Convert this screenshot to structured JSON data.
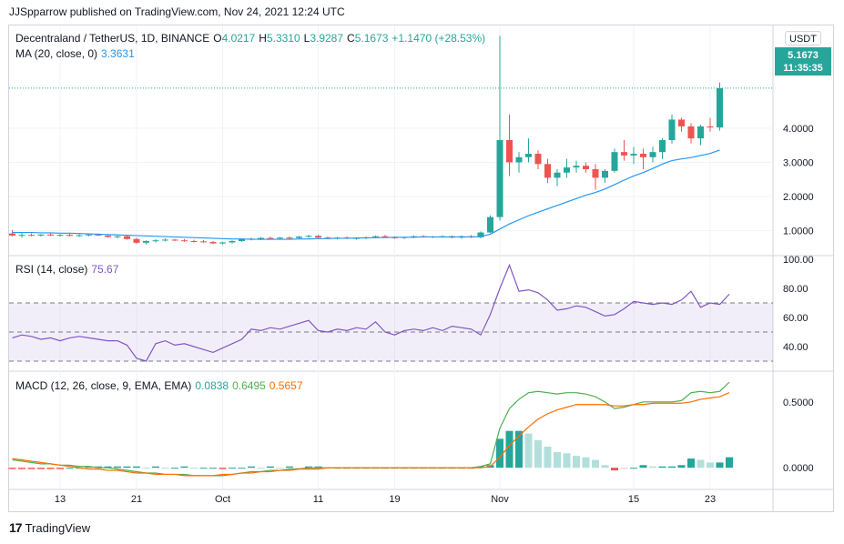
{
  "header": {
    "published": "JJSpparrow published on TradingView.com, Nov 24, 2021 12:24 UTC"
  },
  "branding": {
    "logo_text": "TradingView",
    "logo_icon": "tradingview-logo-icon"
  },
  "currency_button": "USDT",
  "last_price": {
    "price": "5.1673",
    "countdown": "11:35:35"
  },
  "colors": {
    "up": "#26a69a",
    "down": "#ef5350",
    "ma": "#2196f3",
    "rsi": "#7e57c2",
    "macd": "#4caf50",
    "signal": "#ff6d00",
    "hist_up_strong": "#26a69a",
    "hist_up_weak": "#b2dfdb",
    "hist_down_strong": "#ef5350",
    "hist_down_weak": "#ffcdd2"
  },
  "legend": {
    "symbol": "Decentraland / TetherUS, 1D, BINANCE",
    "o_label": "O",
    "o": "4.0217",
    "h_label": "H",
    "h": "5.3310",
    "l_label": "L",
    "l": "3.9287",
    "c_label": "C",
    "c": "5.1673",
    "change": "+1.1470 (+28.53%)",
    "ma_label": "MA (20, close, 0)",
    "ma": "3.3631",
    "rsi_label": "RSI (14, close)",
    "rsi": "75.67",
    "macd_label": "MACD (12, 26, close, 9, EMA, EMA)",
    "macd": "0.0838",
    "macd_line": "0.6495",
    "macd_signal": "0.5657"
  },
  "chart_data": {
    "type": "candlestick",
    "symbol": "Decentraland / TetherUS",
    "interval": "1D",
    "exchange": "BINANCE",
    "x_tick_labels": [
      "13",
      "21",
      "Oct",
      "11",
      "19",
      "Nov",
      "15",
      "23"
    ],
    "x_tick_index": [
      5,
      13,
      22,
      32,
      40,
      51,
      65,
      73
    ],
    "price_axis": {
      "ticks": [
        1.0,
        2.0,
        3.0,
        4.0
      ],
      "tick_labels": [
        "1.0000",
        "2.0000",
        "3.0000",
        "4.0000"
      ]
    },
    "candles": [
      {
        "o": 0.92,
        "h": 1.02,
        "l": 0.84,
        "c": 0.86
      },
      {
        "o": 0.86,
        "h": 0.93,
        "l": 0.8,
        "c": 0.88
      },
      {
        "o": 0.88,
        "h": 0.92,
        "l": 0.84,
        "c": 0.86
      },
      {
        "o": 0.86,
        "h": 0.9,
        "l": 0.83,
        "c": 0.89
      },
      {
        "o": 0.89,
        "h": 0.92,
        "l": 0.85,
        "c": 0.86
      },
      {
        "o": 0.86,
        "h": 0.9,
        "l": 0.83,
        "c": 0.88
      },
      {
        "o": 0.88,
        "h": 0.91,
        "l": 0.84,
        "c": 0.85
      },
      {
        "o": 0.85,
        "h": 0.9,
        "l": 0.82,
        "c": 0.87
      },
      {
        "o": 0.87,
        "h": 0.91,
        "l": 0.84,
        "c": 0.89
      },
      {
        "o": 0.89,
        "h": 0.92,
        "l": 0.85,
        "c": 0.86
      },
      {
        "o": 0.86,
        "h": 0.89,
        "l": 0.8,
        "c": 0.82
      },
      {
        "o": 0.82,
        "h": 0.86,
        "l": 0.78,
        "c": 0.84
      },
      {
        "o": 0.84,
        "h": 0.88,
        "l": 0.74,
        "c": 0.76
      },
      {
        "o": 0.76,
        "h": 0.8,
        "l": 0.62,
        "c": 0.65
      },
      {
        "o": 0.65,
        "h": 0.72,
        "l": 0.6,
        "c": 0.7
      },
      {
        "o": 0.7,
        "h": 0.76,
        "l": 0.66,
        "c": 0.72
      },
      {
        "o": 0.72,
        "h": 0.78,
        "l": 0.69,
        "c": 0.74
      },
      {
        "o": 0.74,
        "h": 0.77,
        "l": 0.7,
        "c": 0.72
      },
      {
        "o": 0.72,
        "h": 0.76,
        "l": 0.68,
        "c": 0.7
      },
      {
        "o": 0.7,
        "h": 0.74,
        "l": 0.66,
        "c": 0.69
      },
      {
        "o": 0.69,
        "h": 0.73,
        "l": 0.65,
        "c": 0.67
      },
      {
        "o": 0.67,
        "h": 0.7,
        "l": 0.61,
        "c": 0.63
      },
      {
        "o": 0.63,
        "h": 0.68,
        "l": 0.6,
        "c": 0.66
      },
      {
        "o": 0.66,
        "h": 0.72,
        "l": 0.63,
        "c": 0.7
      },
      {
        "o": 0.7,
        "h": 0.78,
        "l": 0.68,
        "c": 0.76
      },
      {
        "o": 0.76,
        "h": 0.8,
        "l": 0.72,
        "c": 0.77
      },
      {
        "o": 0.77,
        "h": 0.82,
        "l": 0.73,
        "c": 0.79
      },
      {
        "o": 0.79,
        "h": 0.83,
        "l": 0.75,
        "c": 0.78
      },
      {
        "o": 0.78,
        "h": 0.82,
        "l": 0.74,
        "c": 0.8
      },
      {
        "o": 0.8,
        "h": 0.84,
        "l": 0.76,
        "c": 0.79
      },
      {
        "o": 0.79,
        "h": 0.85,
        "l": 0.76,
        "c": 0.83
      },
      {
        "o": 0.83,
        "h": 0.88,
        "l": 0.79,
        "c": 0.85
      },
      {
        "o": 0.85,
        "h": 0.88,
        "l": 0.78,
        "c": 0.8
      },
      {
        "o": 0.8,
        "h": 0.84,
        "l": 0.76,
        "c": 0.78
      },
      {
        "o": 0.78,
        "h": 0.82,
        "l": 0.75,
        "c": 0.8
      },
      {
        "o": 0.8,
        "h": 0.84,
        "l": 0.76,
        "c": 0.77
      },
      {
        "o": 0.77,
        "h": 0.81,
        "l": 0.74,
        "c": 0.79
      },
      {
        "o": 0.79,
        "h": 0.83,
        "l": 0.76,
        "c": 0.81
      },
      {
        "o": 0.81,
        "h": 0.86,
        "l": 0.78,
        "c": 0.84
      },
      {
        "o": 0.84,
        "h": 0.88,
        "l": 0.8,
        "c": 0.81
      },
      {
        "o": 0.81,
        "h": 0.84,
        "l": 0.77,
        "c": 0.79
      },
      {
        "o": 0.79,
        "h": 0.83,
        "l": 0.76,
        "c": 0.82
      },
      {
        "o": 0.82,
        "h": 0.86,
        "l": 0.79,
        "c": 0.84
      },
      {
        "o": 0.84,
        "h": 0.87,
        "l": 0.8,
        "c": 0.82
      },
      {
        "o": 0.82,
        "h": 0.85,
        "l": 0.79,
        "c": 0.83
      },
      {
        "o": 0.83,
        "h": 0.86,
        "l": 0.8,
        "c": 0.84
      },
      {
        "o": 0.84,
        "h": 0.86,
        "l": 0.78,
        "c": 0.8
      },
      {
        "o": 0.8,
        "h": 0.86,
        "l": 0.77,
        "c": 0.84
      },
      {
        "o": 0.84,
        "h": 0.87,
        "l": 0.79,
        "c": 0.81
      },
      {
        "o": 0.81,
        "h": 0.98,
        "l": 0.78,
        "c": 0.95
      },
      {
        "o": 0.95,
        "h": 1.45,
        "l": 0.93,
        "c": 1.4
      },
      {
        "o": 1.4,
        "h": 6.7,
        "l": 1.3,
        "c": 3.65
      },
      {
        "o": 3.65,
        "h": 4.4,
        "l": 2.6,
        "c": 3.0
      },
      {
        "o": 3.0,
        "h": 3.3,
        "l": 2.7,
        "c": 3.15
      },
      {
        "o": 3.15,
        "h": 3.7,
        "l": 3.0,
        "c": 3.25
      },
      {
        "o": 3.25,
        "h": 3.35,
        "l": 2.8,
        "c": 2.95
      },
      {
        "o": 2.95,
        "h": 3.1,
        "l": 2.4,
        "c": 2.55
      },
      {
        "o": 2.55,
        "h": 2.8,
        "l": 2.3,
        "c": 2.7
      },
      {
        "o": 2.7,
        "h": 3.1,
        "l": 2.55,
        "c": 2.85
      },
      {
        "o": 2.85,
        "h": 3.05,
        "l": 2.7,
        "c": 2.9
      },
      {
        "o": 2.9,
        "h": 3.0,
        "l": 2.7,
        "c": 2.8
      },
      {
        "o": 2.8,
        "h": 2.95,
        "l": 2.2,
        "c": 2.55
      },
      {
        "o": 2.55,
        "h": 2.8,
        "l": 2.4,
        "c": 2.75
      },
      {
        "o": 2.75,
        "h": 3.4,
        "l": 2.7,
        "c": 3.3
      },
      {
        "o": 3.3,
        "h": 3.65,
        "l": 3.05,
        "c": 3.2
      },
      {
        "o": 3.2,
        "h": 3.45,
        "l": 2.95,
        "c": 3.25
      },
      {
        "o": 3.25,
        "h": 3.4,
        "l": 2.8,
        "c": 3.15
      },
      {
        "o": 3.15,
        "h": 3.45,
        "l": 3.0,
        "c": 3.3
      },
      {
        "o": 3.3,
        "h": 3.7,
        "l": 3.1,
        "c": 3.65
      },
      {
        "o": 3.65,
        "h": 4.4,
        "l": 3.55,
        "c": 4.25
      },
      {
        "o": 4.25,
        "h": 4.3,
        "l": 3.9,
        "c": 4.05
      },
      {
        "o": 4.05,
        "h": 4.15,
        "l": 3.55,
        "c": 3.7
      },
      {
        "o": 3.7,
        "h": 4.1,
        "l": 3.5,
        "c": 4.05
      },
      {
        "o": 4.05,
        "h": 4.3,
        "l": 3.9,
        "c": 4.02
      },
      {
        "o": 4.02,
        "h": 5.33,
        "l": 3.93,
        "c": 5.17
      }
    ],
    "ma20": [
      0.95,
      0.95,
      0.95,
      0.94,
      0.94,
      0.93,
      0.93,
      0.92,
      0.91,
      0.9,
      0.89,
      0.88,
      0.87,
      0.86,
      0.85,
      0.84,
      0.83,
      0.82,
      0.81,
      0.8,
      0.79,
      0.78,
      0.77,
      0.76,
      0.76,
      0.75,
      0.75,
      0.75,
      0.75,
      0.75,
      0.76,
      0.76,
      0.77,
      0.77,
      0.78,
      0.78,
      0.79,
      0.79,
      0.8,
      0.8,
      0.81,
      0.81,
      0.81,
      0.82,
      0.82,
      0.82,
      0.82,
      0.82,
      0.82,
      0.83,
      0.9,
      1.05,
      1.2,
      1.32,
      1.44,
      1.54,
      1.64,
      1.74,
      1.84,
      1.94,
      2.04,
      2.12,
      2.22,
      2.35,
      2.48,
      2.6,
      2.7,
      2.82,
      2.95,
      3.05,
      3.1,
      3.14,
      3.2,
      3.26,
      3.36
    ],
    "rsi": {
      "ylim": [
        25,
        100
      ],
      "upper_band": 70,
      "middle_band": 50,
      "lower_band": 30,
      "ticks": [
        40,
        60,
        80,
        100
      ],
      "tick_labels": [
        "40.00",
        "60.00",
        "80.00",
        "100.00"
      ],
      "values": [
        46,
        48,
        47,
        45,
        46,
        44,
        46,
        47,
        46,
        45,
        44,
        44,
        41,
        32,
        30,
        42,
        44,
        41,
        42,
        40,
        38,
        36,
        39,
        42,
        45,
        52,
        51,
        53,
        52,
        54,
        56,
        58,
        51,
        50,
        52,
        51,
        53,
        52,
        57,
        50,
        48,
        51,
        52,
        51,
        53,
        51,
        54,
        53,
        52,
        48,
        62,
        80,
        96,
        78,
        79,
        77,
        72,
        65,
        66,
        68,
        67,
        64,
        61,
        62,
        66,
        71,
        70,
        69,
        70,
        69,
        72,
        78,
        67,
        70,
        69,
        76
      ]
    },
    "macd": {
      "ticks": [
        0.0,
        0.5
      ],
      "tick_labels": [
        "0.0000",
        "0.5000"
      ],
      "macd_line": [
        0.06,
        0.05,
        0.04,
        0.03,
        0.03,
        0.02,
        0.02,
        0.01,
        0.01,
        0.0,
        0.0,
        -0.01,
        -0.02,
        -0.03,
        -0.04,
        -0.04,
        -0.05,
        -0.05,
        -0.05,
        -0.06,
        -0.06,
        -0.06,
        -0.06,
        -0.05,
        -0.04,
        -0.03,
        -0.03,
        -0.02,
        -0.02,
        -0.01,
        -0.01,
        0.0,
        0.0,
        0.0,
        0.0,
        0.0,
        0.0,
        0.0,
        0.0,
        0.0,
        0.0,
        0.0,
        0.0,
        0.0,
        0.0,
        0.0,
        0.0,
        0.0,
        0.0,
        0.01,
        0.03,
        0.3,
        0.45,
        0.52,
        0.57,
        0.58,
        0.57,
        0.56,
        0.57,
        0.57,
        0.56,
        0.54,
        0.5,
        0.45,
        0.46,
        0.48,
        0.5,
        0.5,
        0.5,
        0.5,
        0.51,
        0.57,
        0.58,
        0.57,
        0.58,
        0.65
      ],
      "signal_line": [
        0.07,
        0.06,
        0.05,
        0.04,
        0.03,
        0.02,
        0.01,
        0.0,
        -0.01,
        -0.01,
        -0.02,
        -0.02,
        -0.03,
        -0.04,
        -0.04,
        -0.05,
        -0.05,
        -0.05,
        -0.06,
        -0.06,
        -0.06,
        -0.06,
        -0.05,
        -0.05,
        -0.04,
        -0.04,
        -0.03,
        -0.03,
        -0.02,
        -0.02,
        -0.01,
        -0.01,
        -0.01,
        0.0,
        0.0,
        0.0,
        0.0,
        0.0,
        0.0,
        0.0,
        0.0,
        0.0,
        0.0,
        0.0,
        0.0,
        0.0,
        0.0,
        0.0,
        0.0,
        0.0,
        0.01,
        0.08,
        0.17,
        0.24,
        0.31,
        0.37,
        0.41,
        0.44,
        0.46,
        0.48,
        0.48,
        0.48,
        0.48,
        0.47,
        0.47,
        0.48,
        0.48,
        0.49,
        0.49,
        0.49,
        0.49,
        0.5,
        0.52,
        0.53,
        0.54,
        0.57
      ],
      "histogram": [
        -0.01,
        -0.01,
        -0.01,
        -0.01,
        -0.01,
        -0.01,
        0.0,
        0.0,
        0.01,
        0.01,
        0.01,
        0.01,
        0.01,
        0.01,
        0.0,
        0.01,
        0.0,
        0.0,
        0.01,
        0.0,
        0.0,
        0.0,
        -0.01,
        0.0,
        0.0,
        0.01,
        0.0,
        0.01,
        0.0,
        0.01,
        0.0,
        0.01,
        0.01,
        0.0,
        0.0,
        0.0,
        0.0,
        0.0,
        0.0,
        0.0,
        0.0,
        0.0,
        0.0,
        0.0,
        0.0,
        0.0,
        0.0,
        0.0,
        0.0,
        0.01,
        0.02,
        0.22,
        0.28,
        0.28,
        0.26,
        0.21,
        0.16,
        0.12,
        0.11,
        0.09,
        0.08,
        0.06,
        0.02,
        -0.02,
        -0.01,
        0.0,
        0.02,
        0.01,
        0.01,
        0.01,
        0.02,
        0.07,
        0.06,
        0.04,
        0.04,
        0.08
      ]
    }
  }
}
